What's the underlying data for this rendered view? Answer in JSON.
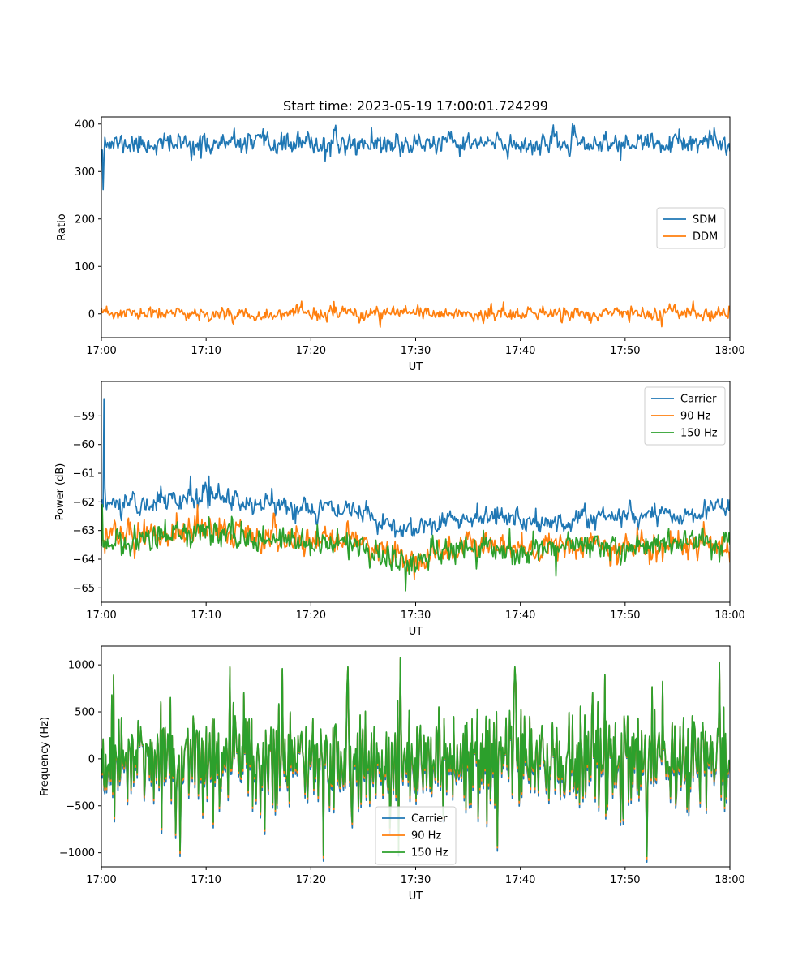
{
  "colors": {
    "c0": "#1f77b4",
    "c1": "#ff7f0e",
    "c2": "#2ca02c"
  },
  "x_tick_labels": [
    "17:00",
    "17:10",
    "17:20",
    "17:30",
    "17:40",
    "17:50",
    "18:00"
  ],
  "chart_data": [
    {
      "type": "line",
      "title": "Start time: 2023-05-19 17:00:01.724299",
      "xlabel": "UT",
      "ylabel": "Ratio",
      "x_unit": "minutes after 17:00 UT",
      "xlim": [
        0,
        60
      ],
      "ylim": [
        -50,
        415
      ],
      "yticks": [
        0,
        100,
        200,
        300,
        400
      ],
      "yticklabels": [
        "0",
        "100",
        "200",
        "300",
        "400"
      ],
      "legend": "center-right",
      "series": [
        {
          "name": "SDM",
          "color": "#1f77b4",
          "baseline": 358,
          "noise": 14,
          "seed": 11,
          "points": [
            [
              0,
              345
            ],
            [
              0.3,
              372
            ],
            [
              0.2,
              262
            ],
            [
              9.5,
              328
            ],
            [
              21.4,
              322
            ],
            [
              25.8,
              392
            ],
            [
              28.5,
              331
            ],
            [
              38.8,
              326
            ],
            [
              58.5,
              392
            ]
          ]
        },
        {
          "name": "DDM",
          "color": "#ff7f0e",
          "baseline": 0,
          "noise": 9,
          "seed": 23,
          "points": [
            [
              22.2,
              26
            ],
            [
              26.6,
              -28
            ],
            [
              53.5,
              -27
            ],
            [
              56.5,
              27
            ]
          ]
        }
      ]
    },
    {
      "type": "line",
      "xlabel": "UT",
      "ylabel": "Power (dB)",
      "xlim": [
        0,
        60
      ],
      "ylim": [
        -65.5,
        -57.8
      ],
      "yticks": [
        -65,
        -64,
        -63,
        -62,
        -61,
        -60,
        -59
      ],
      "yticklabels": [
        "−65",
        "−64",
        "−63",
        "−62",
        "−61",
        "−60",
        "−59"
      ],
      "legend": "upper-right",
      "series": [
        {
          "name": "Carrier",
          "color": "#1f77b4",
          "seed": 31,
          "noise": 0.25,
          "trend": [
            [
              0,
              -62.1
            ],
            [
              5,
              -62.0
            ],
            [
              10,
              -61.8
            ],
            [
              15,
              -62.1
            ],
            [
              20,
              -62.2
            ],
            [
              25,
              -62.4
            ],
            [
              28,
              -62.9
            ],
            [
              32,
              -62.7
            ],
            [
              38,
              -62.4
            ],
            [
              42,
              -62.8
            ],
            [
              48,
              -62.5
            ],
            [
              55,
              -62.4
            ],
            [
              60,
              -62.2
            ]
          ],
          "points": [
            [
              0,
              -62.0
            ],
            [
              0.25,
              -58.4
            ],
            [
              0.35,
              -61.5
            ],
            [
              8.5,
              -61.1
            ],
            [
              10.3,
              -61.1
            ],
            [
              28.6,
              -63.2
            ]
          ]
        },
        {
          "name": "90 Hz",
          "color": "#ff7f0e",
          "seed": 47,
          "noise": 0.32,
          "trend": [
            [
              0,
              -63.1
            ],
            [
              5,
              -63.2
            ],
            [
              10,
              -62.9
            ],
            [
              15,
              -63.2
            ],
            [
              20,
              -63.3
            ],
            [
              25,
              -63.4
            ],
            [
              29,
              -64.1
            ],
            [
              35,
              -63.5
            ],
            [
              40,
              -63.7
            ],
            [
              45,
              -63.5
            ],
            [
              50,
              -63.6
            ],
            [
              55,
              -63.5
            ],
            [
              60,
              -63.6
            ]
          ],
          "points": [
            [
              9.2,
              -62.1
            ],
            [
              29.9,
              -64.7
            ]
          ]
        },
        {
          "name": "150 Hz",
          "color": "#2ca02c",
          "seed": 59,
          "noise": 0.32,
          "trend": [
            [
              0,
              -63.3
            ],
            [
              5,
              -63.3
            ],
            [
              10,
              -63.0
            ],
            [
              15,
              -63.3
            ],
            [
              20,
              -63.4
            ],
            [
              25,
              -63.6
            ],
            [
              29,
              -64.2
            ],
            [
              35,
              -63.5
            ],
            [
              40,
              -63.7
            ],
            [
              45,
              -63.5
            ],
            [
              50,
              -63.6
            ],
            [
              55,
              -63.4
            ],
            [
              60,
              -63.5
            ]
          ],
          "points": [
            [
              0.1,
              -62.1
            ],
            [
              29.0,
              -65.1
            ]
          ]
        }
      ]
    },
    {
      "type": "line",
      "xlabel": "UT",
      "ylabel": "Frequency (Hz)",
      "xlim": [
        0,
        60
      ],
      "ylim": [
        -1150,
        1200
      ],
      "yticks": [
        -1000,
        -500,
        0,
        500,
        1000
      ],
      "yticklabels": [
        "−1000",
        "−500",
        "0",
        "500",
        "1000"
      ],
      "legend": "lower-center",
      "series": [
        {
          "name": "Carrier",
          "color": "#1f77b4",
          "offset": -60
        },
        {
          "name": "90 Hz",
          "color": "#ff7f0e",
          "offset": -25
        },
        {
          "name": "150 Hz",
          "color": "#2ca02c",
          "offset": 0
        }
      ],
      "base_seed": 71,
      "noise": 340,
      "points": [
        [
          1.2,
          890
        ],
        [
          7.5,
          -980
        ],
        [
          12.3,
          980
        ],
        [
          17.3,
          960
        ],
        [
          21.2,
          -1030
        ],
        [
          23.5,
          980
        ],
        [
          28.5,
          1080
        ],
        [
          39.5,
          980
        ],
        [
          52.1,
          -1040
        ],
        [
          59.0,
          1030
        ]
      ]
    }
  ]
}
